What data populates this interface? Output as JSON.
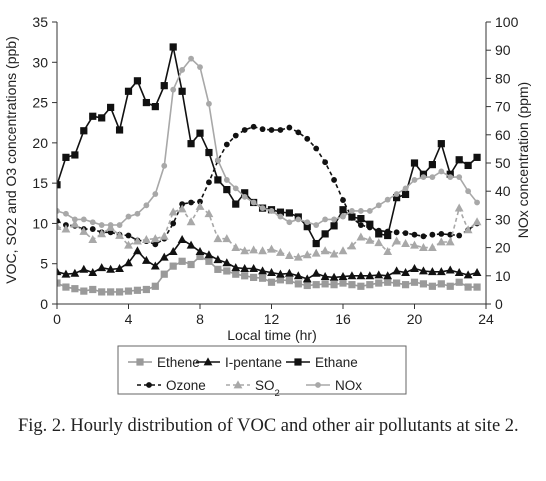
{
  "caption": "Fig. 2. Hourly distribution of VOC and other air pollutants at site 2.",
  "chart_data": {
    "type": "line",
    "xlabel": "Local time (hr)",
    "ylabel_left": "VOC, SO2 and O3 concentrations (ppb)",
    "ylabel_right": "NOx concentration (ppm)",
    "xlim": [
      0,
      24
    ],
    "ylim_left": [
      0,
      35
    ],
    "ylim_right": [
      0,
      100
    ],
    "x_ticks": [
      0,
      4,
      8,
      12,
      16,
      20,
      24
    ],
    "y_ticks_left": [
      0,
      5,
      10,
      15,
      20,
      25,
      30,
      35
    ],
    "y_ticks_right": [
      0,
      10,
      20,
      30,
      40,
      50,
      60,
      70,
      80,
      90,
      100
    ],
    "grid": false,
    "legend_position": "bottom",
    "series": [
      {
        "name": "Ethene",
        "axis": "left",
        "marker": "square",
        "line": "solid",
        "color": "#9a9a9a",
        "x": [
          0,
          0.5,
          1,
          1.5,
          2,
          2.5,
          3,
          3.5,
          4,
          4.5,
          5,
          5.5,
          6,
          6.5,
          7,
          7.5,
          8,
          8.5,
          9,
          9.5,
          10,
          10.5,
          11,
          11.5,
          12,
          12.5,
          13,
          13.5,
          14,
          14.5,
          15,
          15.5,
          16,
          16.5,
          17,
          17.5,
          18,
          18.5,
          19,
          19.5,
          20,
          20.5,
          21,
          21.5,
          22,
          22.5,
          23,
          23.5
        ],
        "values": [
          2.6,
          2.1,
          1.9,
          1.6,
          1.8,
          1.5,
          1.5,
          1.5,
          1.6,
          1.7,
          1.8,
          2.2,
          3.7,
          4.7,
          5.3,
          4.9,
          5.9,
          5.3,
          4.3,
          4.1,
          3.7,
          3.5,
          3.3,
          3.2,
          2.7,
          3.0,
          2.9,
          2.5,
          2.3,
          2.4,
          2.5,
          2.4,
          2.6,
          2.4,
          2.2,
          2.4,
          2.6,
          2.7,
          2.6,
          2.4,
          2.7,
          2.5,
          2.2,
          2.5,
          2.2,
          2.7,
          2.1,
          2.1
        ]
      },
      {
        "name": "I-pentane",
        "axis": "left",
        "marker": "triangle",
        "line": "solid",
        "color": "#111111",
        "x": [
          0,
          0.5,
          1,
          1.5,
          2,
          2.5,
          3,
          3.5,
          4,
          4.5,
          5,
          5.5,
          6,
          6.5,
          7,
          7.5,
          8,
          8.5,
          9,
          9.5,
          10,
          10.5,
          11,
          11.5,
          12,
          12.5,
          13,
          13.5,
          14,
          14.5,
          15,
          15.5,
          16,
          16.5,
          17,
          17.5,
          18,
          18.5,
          19,
          19.5,
          20,
          20.5,
          21,
          21.5,
          22,
          22.5,
          23,
          23.5
        ],
        "values": [
          4.0,
          3.7,
          3.8,
          4.3,
          3.9,
          4.5,
          4.3,
          4.4,
          5.1,
          6.6,
          5.4,
          4.7,
          5.8,
          6.5,
          8.0,
          7.3,
          6.5,
          6.1,
          5.5,
          5.1,
          4.5,
          4.4,
          4.4,
          4.1,
          3.9,
          3.7,
          3.8,
          3.5,
          3.1,
          3.8,
          3.4,
          3.3,
          3.4,
          3.5,
          3.5,
          3.5,
          3.6,
          3.5,
          4.1,
          3.9,
          4.4,
          4.1,
          4.0,
          4.0,
          4.2,
          3.9,
          3.6,
          3.9
        ]
      },
      {
        "name": "Ethane",
        "axis": "left",
        "marker": "square",
        "line": "solid",
        "color": "#111111",
        "x": [
          0,
          0.5,
          1,
          1.5,
          2,
          2.5,
          3,
          3.5,
          4,
          4.5,
          5,
          5.5,
          6,
          6.5,
          7,
          7.5,
          8,
          8.5,
          9,
          9.5,
          10,
          10.5,
          11,
          11.5,
          12,
          12.5,
          13,
          13.5,
          14,
          14.5,
          15,
          15.5,
          16,
          16.5,
          17,
          17.5,
          18,
          18.5,
          19,
          19.5,
          20,
          20.5,
          21,
          21.5,
          22,
          22.5,
          23,
          23.5
        ],
        "values": [
          14.8,
          18.2,
          18.5,
          21.5,
          23.3,
          23.1,
          24.4,
          21.6,
          26.4,
          27.7,
          25.0,
          24.5,
          27.1,
          31.9,
          26.4,
          19.9,
          21.2,
          18.8,
          15.4,
          14.2,
          12.4,
          13.8,
          12.6,
          11.9,
          11.7,
          11.4,
          11.3,
          10.8,
          9.6,
          7.5,
          8.7,
          9.7,
          11.7,
          10.8,
          10.6,
          9.9,
          8.7,
          8.5,
          13.2,
          13.6,
          17.5,
          16.1,
          17.3,
          19.9,
          16.1,
          17.9,
          17.2,
          18.2
        ]
      },
      {
        "name": "Ozone",
        "axis": "left",
        "marker": "circle",
        "line": "dashed",
        "color": "#111111",
        "x": [
          0,
          0.5,
          1,
          1.5,
          2,
          2.5,
          3,
          3.5,
          4,
          4.5,
          5,
          5.5,
          6,
          6.5,
          7,
          7.5,
          8,
          8.5,
          9,
          9.5,
          10,
          10.5,
          11,
          11.5,
          12,
          12.5,
          13,
          13.5,
          14,
          14.5,
          15,
          15.5,
          16,
          16.5,
          17,
          17.5,
          18,
          18.5,
          19,
          19.5,
          20,
          20.5,
          21,
          21.5,
          22,
          22.5,
          23,
          23.5
        ],
        "values": [
          10.3,
          9.8,
          9.7,
          9.3,
          9.3,
          8.9,
          8.9,
          8.6,
          8.5,
          7.9,
          7.8,
          7.4,
          8.1,
          10.0,
          12.4,
          12.6,
          12.7,
          15.1,
          17.8,
          19.8,
          20.9,
          21.6,
          22.0,
          21.7,
          21.6,
          21.6,
          21.9,
          21.3,
          20.5,
          19.3,
          17.6,
          15.4,
          12.9,
          10.7,
          9.8,
          9.5,
          9.1,
          9.0,
          8.9,
          8.8,
          8.6,
          8.4,
          8.6,
          8.7,
          8.6,
          8.5,
          9.2,
          10.0
        ]
      },
      {
        "name": "SO2",
        "axis": "left",
        "marker": "triangle",
        "line": "dashed",
        "color": "#a8a8a8",
        "x": [
          0,
          0.5,
          1,
          1.5,
          2,
          2.5,
          3,
          3.5,
          4,
          4.5,
          5,
          5.5,
          6,
          6.5,
          7,
          7.5,
          8,
          8.5,
          9,
          9.5,
          10,
          10.5,
          11,
          11.5,
          12,
          12.5,
          13,
          13.5,
          14,
          14.5,
          15,
          15.5,
          16,
          16.5,
          17,
          17.5,
          18,
          18.5,
          19,
          19.5,
          20,
          20.5,
          21,
          21.5,
          22,
          22.5,
          23,
          23.5
        ],
        "values": [
          9.6,
          9.3,
          9.9,
          9.0,
          8.0,
          8.7,
          9.5,
          8.5,
          7.3,
          7.8,
          8.0,
          8.1,
          8.4,
          11.4,
          11.8,
          10.2,
          12.1,
          11.2,
          8.1,
          8.1,
          7.0,
          6.6,
          6.7,
          6.6,
          6.8,
          6.4,
          6.0,
          5.8,
          6.1,
          6.3,
          6.6,
          6.2,
          6.6,
          7.2,
          8.3,
          7.9,
          7.6,
          6.5,
          7.8,
          7.5,
          7.3,
          7.0,
          7.0,
          7.7,
          7.7,
          11.9,
          9.2,
          10.2
        ]
      },
      {
        "name": "NOx",
        "axis": "right",
        "marker": "circle",
        "line": "solid",
        "color": "#a8a8a8",
        "x": [
          0,
          0.5,
          1,
          1.5,
          2,
          2.5,
          3,
          3.5,
          4,
          4.5,
          5,
          5.5,
          6,
          6.5,
          7,
          7.5,
          8,
          8.5,
          9,
          9.5,
          10,
          10.5,
          11,
          11.5,
          12,
          12.5,
          13,
          13.5,
          14,
          14.5,
          15,
          15.5,
          16,
          16.5,
          17,
          17.5,
          18,
          18.5,
          19,
          19.5,
          20,
          20.5,
          21,
          21.5,
          22,
          22.5,
          23,
          23.5
        ],
        "values": [
          33,
          32,
          30,
          30,
          29,
          28,
          28,
          28,
          31,
          32,
          35,
          39,
          49,
          76,
          83,
          87,
          84,
          71,
          51,
          44,
          41,
          38,
          36,
          34,
          33,
          31,
          29,
          30,
          29,
          28,
          30,
          30,
          31,
          33,
          33,
          33,
          35,
          37,
          39,
          41,
          44,
          45,
          45,
          47,
          45,
          45,
          40,
          36
        ]
      }
    ]
  }
}
